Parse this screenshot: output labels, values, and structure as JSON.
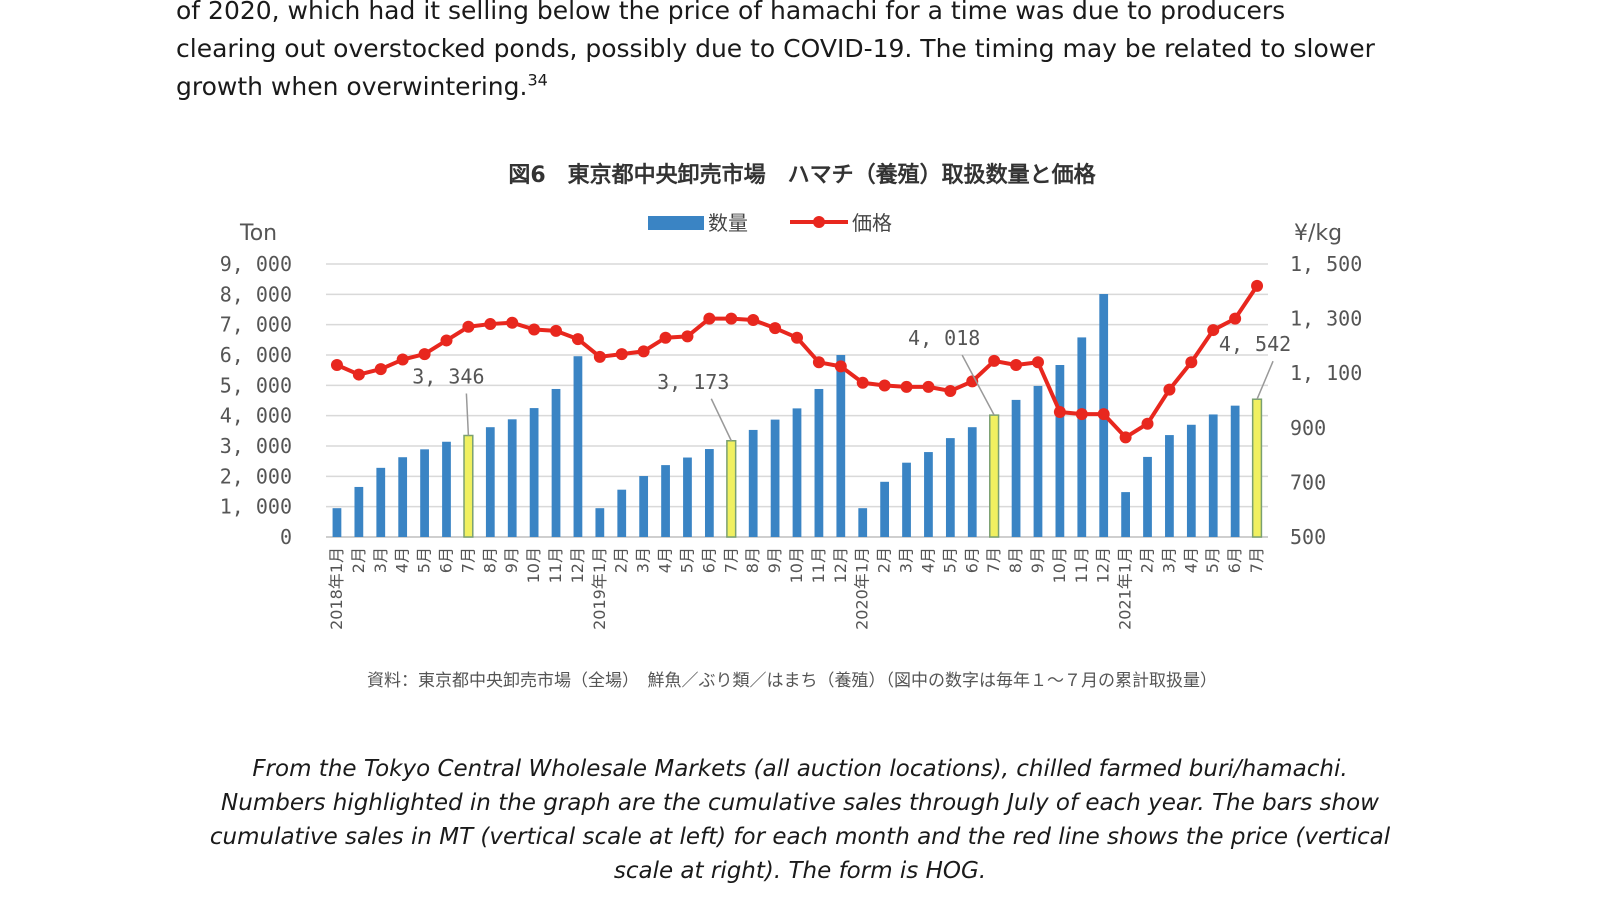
{
  "intro": {
    "line1": "of 2020, which had it selling below the price of hamachi for a time was due to producers",
    "line2": "clearing out overstocked ponds, possibly due to COVID-19. The timing may be related to slower",
    "line3": "growth when overwintering.",
    "footnote": "34"
  },
  "caption": {
    "line1": "From the Tokyo Central Wholesale Markets (all auction locations), chilled farmed buri/hamachi.",
    "line2": "Numbers highlighted in the graph are the cumulative sales through July of each year. The bars show",
    "line3": "cumulative sales in MT (vertical scale at left) for each month and the red line shows the price (vertical",
    "line4": "scale at right). The form is HOG."
  },
  "colors": {
    "bar": "#3a84c4",
    "bar_highlight": "#f0f060",
    "bar_highlight_edge": "#7aa070",
    "line": "#e8271e",
    "grid": "#d9d9d9"
  },
  "chart_data": {
    "type": "bar+line",
    "title": "図6　東京都中央卸売市場　ハマチ（養殖）取扱数量と価格",
    "source": "資料：東京都中央卸売市場（全場）　鮮魚／ぶり類／はまち（養殖）（図中の数字は毎年１～７月の累計取扱量）",
    "left_axis": {
      "unit": "Ton",
      "range": [
        0,
        9000
      ],
      "ticks": [
        "0",
        "1, 000",
        "2, 000",
        "3, 000",
        "4, 000",
        "5, 000",
        "6, 000",
        "7, 000",
        "8, 000",
        "9, 000"
      ]
    },
    "right_axis": {
      "unit": "¥/kg",
      "range": [
        500,
        1500
      ],
      "ticks": [
        "500",
        "700",
        "900",
        "1, 100",
        "1, 300",
        "1, 500"
      ]
    },
    "legend": [
      {
        "name": "数量",
        "kind": "bar"
      },
      {
        "name": "価格",
        "kind": "line"
      }
    ],
    "categories": [
      "2018年1月",
      "2月",
      "3月",
      "4月",
      "5月",
      "6月",
      "7月",
      "8月",
      "9月",
      "10月",
      "11月",
      "12月",
      "2019年1月",
      "2月",
      "3月",
      "4月",
      "5月",
      "6月",
      "7月",
      "8月",
      "9月",
      "10月",
      "11月",
      "12月",
      "2020年1月",
      "2月",
      "3月",
      "4月",
      "5月",
      "6月",
      "7月",
      "8月",
      "9月",
      "10月",
      "11月",
      "12月",
      "2021年1月",
      "2月",
      "3月",
      "4月",
      "5月",
      "6月",
      "7月"
    ],
    "series": [
      {
        "name": "数量",
        "axis": "left",
        "values": [
          950,
          1650,
          2280,
          2630,
          2890,
          3140,
          3346,
          3620,
          3880,
          4250,
          4880,
          5960,
          950,
          1560,
          2010,
          2370,
          2620,
          2900,
          3173,
          3530,
          3870,
          4240,
          4880,
          6000,
          950,
          1820,
          2450,
          2800,
          3260,
          3620,
          4018,
          4520,
          4980,
          5670,
          6580,
          8010,
          1480,
          2640,
          3360,
          3700,
          4040,
          4330,
          4542
        ]
      },
      {
        "name": "価格",
        "axis": "right",
        "values": [
          1130,
          1095,
          1115,
          1150,
          1170,
          1220,
          1270,
          1280,
          1285,
          1260,
          1255,
          1225,
          1160,
          1170,
          1180,
          1230,
          1235,
          1300,
          1300,
          1295,
          1265,
          1230,
          1140,
          1125,
          1065,
          1055,
          1050,
          1050,
          1035,
          1070,
          1145,
          1130,
          1140,
          958,
          950,
          950,
          865,
          915,
          1040,
          1140,
          1258,
          1300,
          1420
        ]
      }
    ],
    "highlighted": [
      {
        "index": 6,
        "label": "3, 346"
      },
      {
        "index": 18,
        "label": "3, 173"
      },
      {
        "index": 30,
        "label": "4, 018"
      },
      {
        "index": 42,
        "label": "4, 542"
      }
    ]
  }
}
